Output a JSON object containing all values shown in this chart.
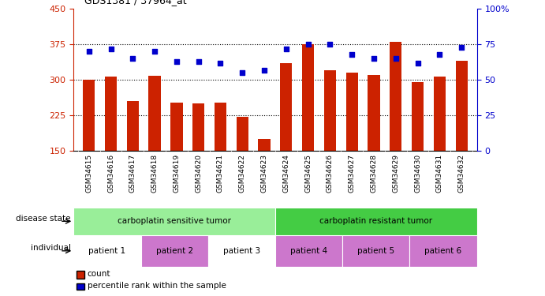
{
  "title": "GDS1381 / 37964_at",
  "samples": [
    "GSM34615",
    "GSM34616",
    "GSM34617",
    "GSM34618",
    "GSM34619",
    "GSM34620",
    "GSM34621",
    "GSM34622",
    "GSM34623",
    "GSM34624",
    "GSM34625",
    "GSM34626",
    "GSM34627",
    "GSM34628",
    "GSM34629",
    "GSM34630",
    "GSM34631",
    "GSM34632"
  ],
  "counts": [
    300,
    307,
    255,
    308,
    252,
    250,
    252,
    222,
    175,
    335,
    375,
    320,
    315,
    310,
    380,
    295,
    307,
    340
  ],
  "percentiles": [
    70,
    72,
    65,
    70,
    63,
    63,
    62,
    55,
    57,
    72,
    75,
    75,
    68,
    65,
    65,
    62,
    68,
    73
  ],
  "ylim_left": [
    150,
    450
  ],
  "ylim_right": [
    0,
    100
  ],
  "yticks_left": [
    150,
    225,
    300,
    375,
    450
  ],
  "yticks_right": [
    0,
    25,
    50,
    75,
    100
  ],
  "bar_color": "#cc2200",
  "dot_color": "#0000cc",
  "disease_state_groups": [
    {
      "label": "carboplatin sensitive tumor",
      "start": 0,
      "end": 9,
      "color": "#99ee99"
    },
    {
      "label": "carboplatin resistant tumor",
      "start": 9,
      "end": 18,
      "color": "#44cc44"
    }
  ],
  "individual_groups": [
    {
      "label": "patient 1",
      "start": 0,
      "end": 3,
      "color": "#ffffff"
    },
    {
      "label": "patient 2",
      "start": 3,
      "end": 6,
      "color": "#cc77cc"
    },
    {
      "label": "patient 3",
      "start": 6,
      "end": 9,
      "color": "#ffffff"
    },
    {
      "label": "patient 4",
      "start": 9,
      "end": 12,
      "color": "#cc77cc"
    },
    {
      "label": "patient 5",
      "start": 12,
      "end": 15,
      "color": "#cc77cc"
    },
    {
      "label": "patient 6",
      "start": 15,
      "end": 18,
      "color": "#cc77cc"
    }
  ],
  "disease_state_label": "disease state",
  "individual_label": "individual",
  "legend_count_label": "count",
  "legend_pct_label": "percentile rank within the sample"
}
